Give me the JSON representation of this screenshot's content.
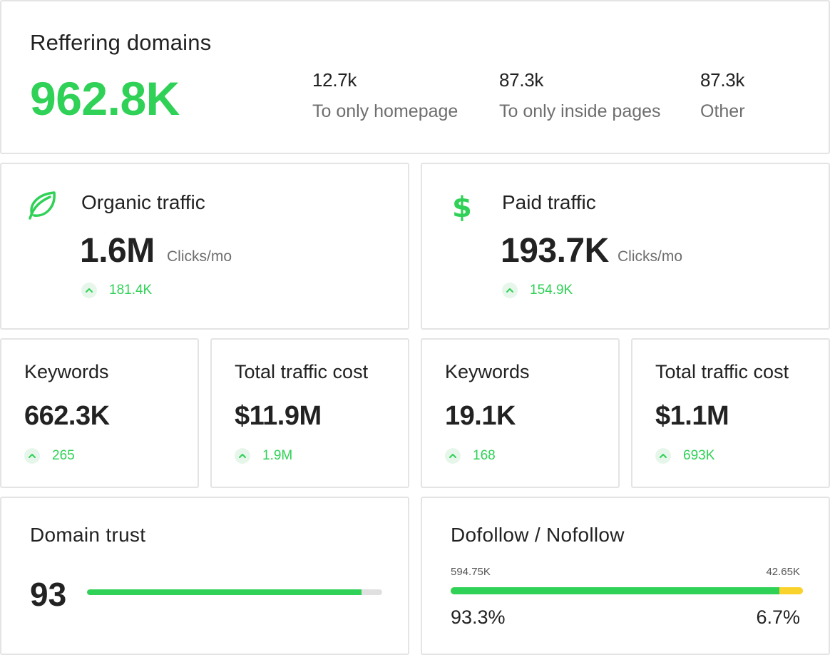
{
  "referring": {
    "title": "Reffering domains",
    "total": "962.8K",
    "stats": [
      {
        "value": "12.7k",
        "label": "To only homepage"
      },
      {
        "value": "87.3k",
        "label": "To only inside pages"
      },
      {
        "value": "87.3k",
        "label": "Other"
      }
    ]
  },
  "organic": {
    "icon": "leaf-icon",
    "title": "Organic traffic",
    "value": "1.6M",
    "unit": "Clicks/mo",
    "delta": "181.4K"
  },
  "paid": {
    "icon": "dollar-icon",
    "title": "Paid traffic",
    "value": "193.7K",
    "unit": "Clicks/mo",
    "delta": "154.9K"
  },
  "organic_keywords": {
    "title": "Keywords",
    "value": "662.3K",
    "delta": "265"
  },
  "organic_cost": {
    "title": "Total traffic cost",
    "value": "$11.9M",
    "delta": "1.9M"
  },
  "paid_keywords": {
    "title": "Keywords",
    "value": "19.1K",
    "delta": "168"
  },
  "paid_cost": {
    "title": "Total traffic cost",
    "value": "$1.1M",
    "delta": "693K"
  },
  "domain_trust": {
    "title": "Domain trust",
    "value": "93",
    "fraction": 0.93
  },
  "follow": {
    "title": "Dofollow / Nofollow",
    "dofollow_count": "594.75K",
    "nofollow_count": "42.65K",
    "dofollow_pct": "93.3%",
    "nofollow_pct": "6.7%",
    "dofollow_fraction": 0.933
  },
  "colors": {
    "accent_green": "#2fd156",
    "accent_yellow": "#f9d22c",
    "delta_bg": "#e7f6ea",
    "border": "#e4e4e4"
  }
}
